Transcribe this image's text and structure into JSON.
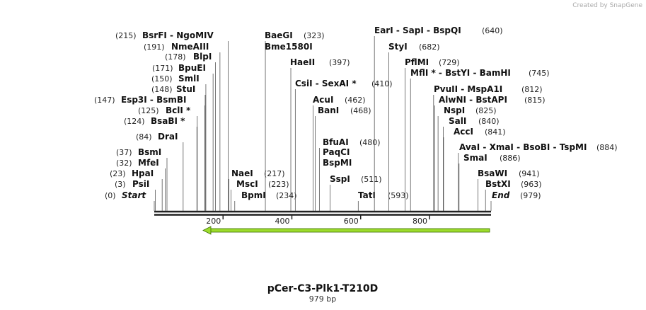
{
  "watermark": "Created by SnapGene",
  "map": {
    "title": "pCer-C3-Plk1-T210D",
    "length": {
      "value": 979,
      "label": "979 bp"
    },
    "ticks": [
      200,
      400,
      600,
      800
    ],
    "enzymes": [
      {
        "name": "BsrFI - NgoMIV",
        "site": {
          "value": 215,
          "label": "(215)"
        }
      },
      {
        "name": "NmeAIII",
        "site": {
          "value": 191,
          "label": "(191)"
        }
      },
      {
        "name": "BlpI",
        "site": {
          "value": 178,
          "label": "(178)"
        }
      },
      {
        "name": "BpuEI",
        "site": {
          "value": 171,
          "label": "(171)"
        }
      },
      {
        "name": "SmlI",
        "site": {
          "value": 150,
          "label": "(150)"
        }
      },
      {
        "name": "StuI",
        "site": {
          "value": 148,
          "label": "(148)"
        }
      },
      {
        "name": "Esp3I - BsmBI",
        "site": {
          "value": 147,
          "label": "(147)"
        }
      },
      {
        "name": "BclI *",
        "site": {
          "value": 125,
          "label": "(125)"
        }
      },
      {
        "name": "BsaBI *",
        "site": {
          "value": 124,
          "label": "(124)"
        }
      },
      {
        "name": "DraI",
        "site": {
          "value": 84,
          "label": "(84)"
        }
      },
      {
        "name": "BsmI",
        "site": {
          "value": 37,
          "label": "(37)"
        }
      },
      {
        "name": "MfeI",
        "site": {
          "value": 32,
          "label": "(32)"
        }
      },
      {
        "name": "HpaI",
        "site": {
          "value": 23,
          "label": "(23)"
        }
      },
      {
        "name": "PsiI",
        "site": {
          "value": 3,
          "label": "(3)"
        }
      },
      {
        "name": "Start",
        "site": {
          "value": 0,
          "label": "(0)"
        }
      },
      {
        "name": "NaeI",
        "site": {
          "value": 217,
          "label": "(217)"
        }
      },
      {
        "name": "MscI",
        "site": {
          "value": 223,
          "label": "(223)"
        }
      },
      {
        "name": "BpmI",
        "site": {
          "value": 234,
          "label": "(234)"
        }
      },
      {
        "name": "BaeGI",
        "site": {
          "value": 323,
          "label": "(323)"
        }
      },
      {
        "name": "Bme1580I"
      },
      {
        "name": "HaeII",
        "site": {
          "value": 397,
          "label": "(397)"
        }
      },
      {
        "name": "CsiI - SexAI *",
        "site": {
          "value": 410,
          "label": "(410)"
        }
      },
      {
        "name": "AcuI",
        "site": {
          "value": 462,
          "label": "(462)"
        }
      },
      {
        "name": "BanI",
        "site": {
          "value": 468,
          "label": "(468)"
        }
      },
      {
        "name": "BfuAI",
        "site": {
          "value": 480,
          "label": "(480)"
        }
      },
      {
        "name": "PaqCI"
      },
      {
        "name": "BspMI"
      },
      {
        "name": "SspI",
        "site": {
          "value": 511,
          "label": "(511)"
        }
      },
      {
        "name": "TatI",
        "site": {
          "value": 593,
          "label": "(593)"
        }
      },
      {
        "name": "EarI - SapI - BspQI",
        "site": {
          "value": 640,
          "label": "(640)"
        }
      },
      {
        "name": "StyI",
        "site": {
          "value": 682,
          "label": "(682)"
        }
      },
      {
        "name": "PflMI",
        "site": {
          "value": 729,
          "label": "(729)"
        }
      },
      {
        "name": "MflI * - BstYI - BamHI",
        "site": {
          "value": 745,
          "label": "(745)"
        }
      },
      {
        "name": "PvuII - MspA1I",
        "site": {
          "value": 812,
          "label": "(812)"
        }
      },
      {
        "name": "AlwNI - BstAPI",
        "site": {
          "value": 815,
          "label": "(815)"
        }
      },
      {
        "name": "NspI",
        "site": {
          "value": 825,
          "label": "(825)"
        }
      },
      {
        "name": "SalI",
        "site": {
          "value": 840,
          "label": "(840)"
        }
      },
      {
        "name": "AccI",
        "site": {
          "value": 841,
          "label": "(841)"
        }
      },
      {
        "name": "AvaI - XmaI - BsoBI - TspMI",
        "site": {
          "value": 884,
          "label": "(884)"
        }
      },
      {
        "name": "SmaI",
        "site": {
          "value": 886,
          "label": "(886)"
        }
      },
      {
        "name": "BsaWI",
        "site": {
          "value": 941,
          "label": "(941)"
        }
      },
      {
        "name": "BstXI",
        "site": {
          "value": 963,
          "label": "(963)"
        }
      },
      {
        "name": "End",
        "site": {
          "value": 979,
          "label": "(979)"
        }
      }
    ]
  }
}
